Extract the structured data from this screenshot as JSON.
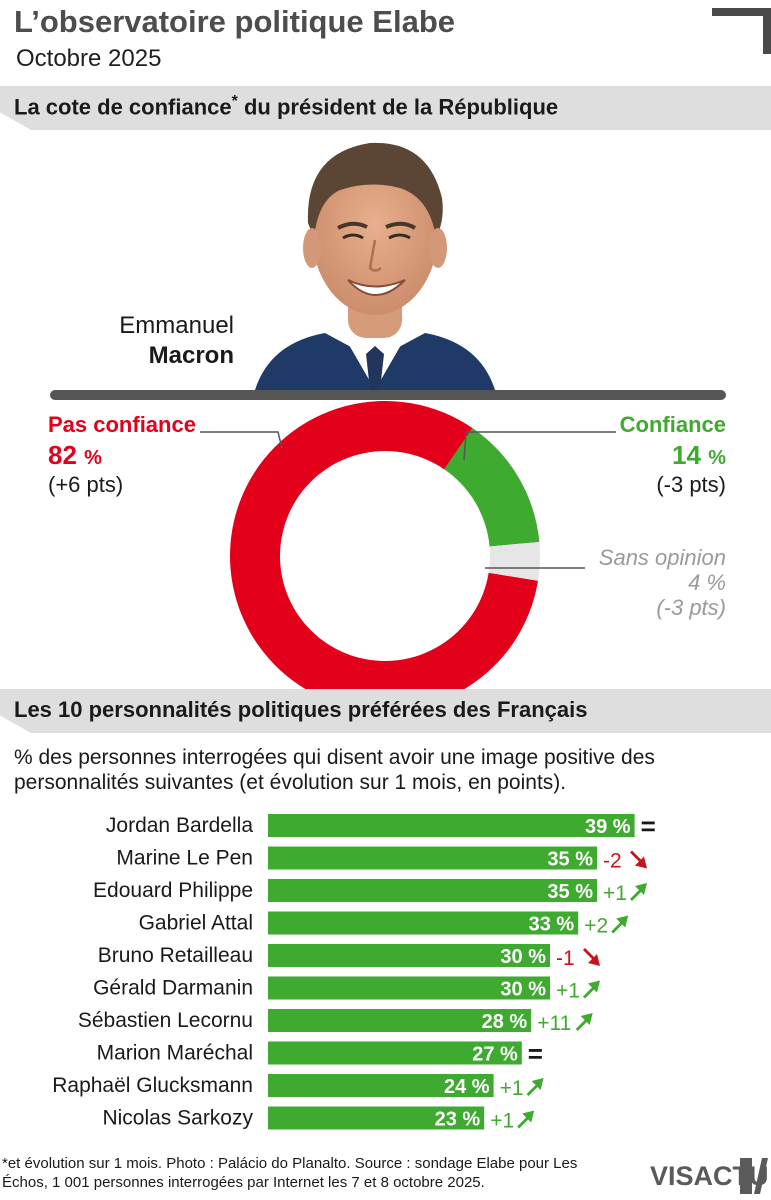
{
  "header": {
    "title": "L’observatoire politique Elabe",
    "subtitle": "Octobre 2025"
  },
  "section1": {
    "title": "La cote de confiance",
    "title_mark": "*",
    "title_rest": " du président de la République"
  },
  "person": {
    "first_name": "Emmanuel",
    "last_name": "Macron"
  },
  "confidence": {
    "no_trust": {
      "label": "Pas confiance",
      "value": "82",
      "unit": "%",
      "change": "(+6 pts)"
    },
    "trust": {
      "label": "Confiance",
      "value": "14",
      "unit": "%",
      "change": "(-3 pts)"
    },
    "no_opinion": {
      "label": "Sans opinion",
      "value": "4 %",
      "change": "(-3 pts)"
    }
  },
  "section2": {
    "title": "Les 10 personnalités politiques préférées des Français",
    "description": "% des personnes interrogées qui disent avoir une image positive des personnalités suivantes (et évolution sur 1 mois, en points)."
  },
  "colors": {
    "red": "#e2001a",
    "green": "#3eaa2f",
    "grey": "#e6e6e6",
    "down_arrow": "#c4161c",
    "neutral": "#1a1a1a"
  },
  "chart_data": [
    {
      "type": "pie",
      "categories": [
        "Pas confiance",
        "Confiance",
        "Sans opinion"
      ],
      "values": [
        82,
        14,
        4
      ],
      "changes": [
        "+6 pts",
        "-3 pts",
        "-3 pts"
      ],
      "colors": [
        "#e2001a",
        "#3eaa2f",
        "#e6e6e6"
      ],
      "style": "donut"
    },
    {
      "type": "bar",
      "orientation": "horizontal",
      "categories": [
        "Jordan Bardella",
        "Marine Le Pen",
        "Edouard Philippe",
        "Gabriel Attal",
        "Bruno Retailleau",
        "Gérald Darmanin",
        "Sébastien Lecornu",
        "Marion Maréchal",
        "Raphaël Glucksmann",
        "Nicolas Sarkozy"
      ],
      "values": [
        39,
        35,
        35,
        33,
        30,
        30,
        28,
        27,
        24,
        23
      ],
      "value_labels": [
        "39 %",
        "35 %",
        "35 %",
        "33 %",
        "30 %",
        "30 %",
        "28 %",
        "27 %",
        "24 %",
        "23 %"
      ],
      "changes": [
        "=",
        "-2",
        "+1",
        "+2",
        "-1",
        "+1",
        "+11",
        "=",
        "+1",
        "+1"
      ],
      "change_directions": [
        "flat",
        "down",
        "up",
        "up",
        "down",
        "up",
        "up",
        "flat",
        "up",
        "up"
      ],
      "color": "#3eaa2f"
    }
  ],
  "footer": {
    "note": "*et évolution sur 1 mois. Photo : Palácio do Planalto. Source : sondage Elabe pour Les Échos, 1 001 personnes interrogées par Internet les 7 et 8 octobre 2025.",
    "logo_text": "VISACTU"
  }
}
